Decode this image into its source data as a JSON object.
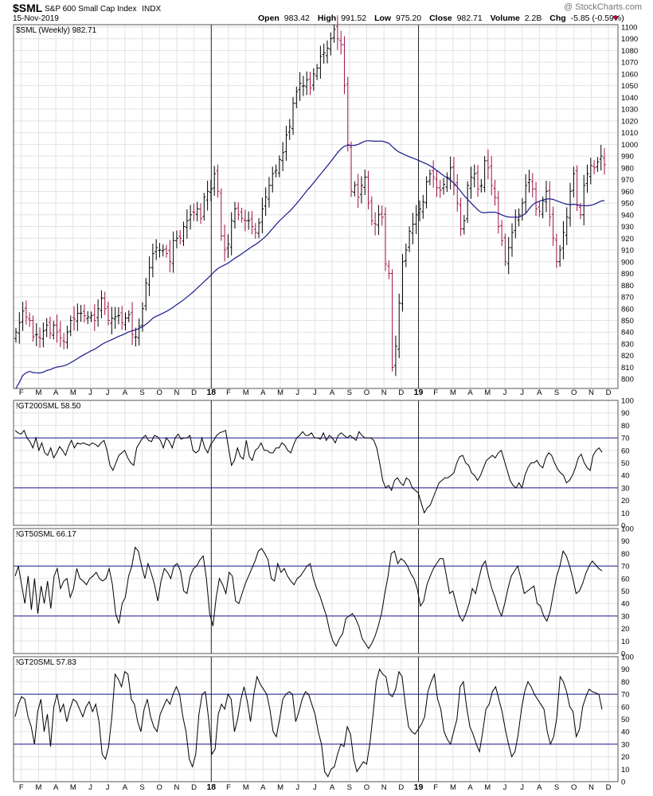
{
  "header": {
    "symbol": "$SML",
    "name": "S&P 600 Small Cap Index",
    "exchange": "INDX",
    "date": "15-Nov-2019",
    "watermark": "@ StockCharts.com",
    "open_label": "Open",
    "open": "983.42",
    "high_label": "High",
    "high": "991.52",
    "low_label": "Low",
    "low": "975.20",
    "close_label": "Close",
    "close": "982.71",
    "volume_label": "Volume",
    "volume": "2.2B",
    "chg_label": "Chg",
    "chg": "-5.85 (-0.59%)"
  },
  "colors": {
    "up": "#000000",
    "down": "#a0114a",
    "ma": "#1a1a8c",
    "ref_lines": "#1a1a8c",
    "indicator": "#000000",
    "grid": "#e2e2e2"
  },
  "x_labels": [
    "F",
    "M",
    "A",
    "M",
    "J",
    "J",
    "A",
    "S",
    "O",
    "N",
    "D",
    "18",
    "F",
    "M",
    "A",
    "M",
    "J",
    "J",
    "A",
    "S",
    "O",
    "N",
    "D",
    "19",
    "F",
    "M",
    "A",
    "M",
    "J",
    "J",
    "A",
    "S",
    "O",
    "N",
    "D"
  ],
  "chart_data": [
    {
      "type": "ohlc",
      "legend": "$SML (Weekly) 982.71",
      "ylim": [
        792,
        1102
      ],
      "y_ticks": [
        800,
        810,
        820,
        830,
        840,
        850,
        860,
        870,
        880,
        890,
        900,
        910,
        920,
        930,
        940,
        950,
        960,
        970,
        980,
        990,
        1000,
        1010,
        1020,
        1030,
        1040,
        1050,
        1060,
        1070,
        1080,
        1090,
        1100
      ],
      "x_labels": [
        "F",
        "M",
        "A",
        "M",
        "J",
        "J",
        "A",
        "S",
        "O",
        "N",
        "D",
        "18",
        "F",
        "M",
        "A",
        "M",
        "J",
        "J",
        "A",
        "S",
        "O",
        "N",
        "D",
        "19",
        "F",
        "M",
        "A",
        "M",
        "J",
        "J",
        "A",
        "S",
        "O",
        "N",
        "D"
      ],
      "close": [
        840,
        848,
        858,
        853,
        850,
        836,
        838,
        835,
        841,
        846,
        839,
        846,
        840,
        835,
        832,
        840,
        850,
        851,
        856,
        856,
        854,
        853,
        854,
        850,
        860,
        869,
        860,
        850,
        852,
        853,
        854,
        848,
        852,
        855,
        838,
        836,
        845,
        860,
        882,
        895,
        907,
        912,
        910,
        910,
        907,
        900,
        918,
        920,
        920,
        930,
        935,
        940,
        942,
        945,
        937,
        955,
        960,
        962,
        975,
        960,
        922,
        910,
        915,
        935,
        945,
        940,
        937,
        935,
        935,
        930,
        925,
        933,
        945,
        955,
        965,
        975,
        978,
        987,
        993,
        1008,
        1015,
        1035,
        1045,
        1052,
        1050,
        1055,
        1048,
        1060,
        1065,
        1075,
        1078,
        1082,
        1090,
        1098,
        1090,
        1085,
        1050,
        1000,
        960,
        965,
        955,
        965,
        972,
        950,
        935,
        932,
        940,
        938,
        898,
        890,
        810,
        828,
        865,
        900,
        910,
        926,
        932,
        940,
        945,
        951,
        968,
        975,
        972,
        963,
        961,
        966,
        972,
        980,
        965,
        950,
        928,
        935,
        965,
        972,
        975,
        962,
        965,
        986,
        980,
        965,
        955,
        930,
        918,
        900,
        912,
        925,
        938,
        940,
        950,
        965,
        970,
        962,
        945,
        943,
        952,
        960,
        938,
        920,
        900,
        910,
        925,
        938,
        960,
        975,
        948,
        940,
        965,
        975,
        982,
        980,
        985,
        990,
        982.71
      ],
      "ma": [
        null,
        null,
        null,
        null,
        null,
        null,
        null,
        null,
        null,
        null,
        null,
        null,
        null,
        null,
        null,
        null,
        null,
        null,
        null,
        null,
        null,
        null,
        null,
        null,
        null,
        null,
        null,
        null,
        null,
        null,
        null,
        null,
        null,
        null,
        null,
        null,
        null,
        null,
        null,
        null,
        null,
        null,
        null,
        null,
        null,
        null,
        null,
        null,
        null,
        null,
        null,
        null,
        null,
        null,
        null,
        null,
        null,
        null,
        null,
        null,
        null,
        null,
        null,
        null,
        null,
        null,
        null,
        null,
        null,
        null,
        null,
        null,
        null,
        null,
        null,
        null,
        null,
        null,
        null,
        null,
        null,
        null,
        null,
        null,
        null,
        null,
        null,
        null,
        null,
        null,
        null,
        null,
        null,
        null,
        null,
        null,
        null,
        null,
        null,
        null,
        null,
        null,
        null,
        null,
        null,
        null,
        null,
        null,
        null,
        null,
        null,
        null,
        null,
        null,
        null,
        null,
        null,
        null,
        null,
        null,
        null,
        null,
        null,
        null,
        null,
        null,
        null,
        null,
        null,
        null,
        null,
        null,
        null,
        null,
        null,
        null,
        null,
        null,
        null,
        null,
        null,
        null,
        null,
        null,
        null,
        null,
        null,
        null,
        null,
        null,
        null,
        null,
        null,
        null,
        null,
        null,
        null,
        null,
        null,
        null,
        null,
        null,
        null,
        null,
        null,
        null,
        null,
        null,
        null,
        null,
        null,
        null,
        null,
        null,
        null,
        null
      ]
    },
    {
      "type": "line",
      "legend": "!GT200SML 58.50",
      "ylim": [
        0,
        100
      ],
      "y_ticks": [
        0,
        10,
        20,
        30,
        40,
        50,
        60,
        70,
        80,
        90,
        100
      ],
      "ref_lines": [
        30,
        70
      ],
      "values": [
        76,
        74,
        73,
        76,
        70,
        67,
        62,
        70,
        60,
        66,
        58,
        56,
        62,
        54,
        58,
        63,
        60,
        56,
        63,
        68,
        62,
        66,
        65,
        66,
        65,
        64,
        66,
        65,
        63,
        66,
        68,
        60,
        48,
        44,
        50,
        56,
        58,
        60,
        54,
        50,
        48,
        62,
        66,
        70,
        72,
        68,
        67,
        72,
        71,
        68,
        62,
        70,
        67,
        62,
        70,
        73,
        69,
        70,
        70,
        72,
        60,
        58,
        60,
        70,
        62,
        58,
        65,
        68,
        72,
        74,
        75,
        76,
        62,
        48,
        52,
        62,
        55,
        53,
        68,
        55,
        52,
        60,
        62,
        66,
        60,
        60,
        58,
        58,
        62,
        62,
        66,
        64,
        60,
        58,
        65,
        70,
        72,
        75,
        72,
        72,
        74,
        70,
        70,
        69,
        74,
        68,
        72,
        70,
        66,
        72,
        74,
        72,
        70,
        72,
        70,
        68,
        75,
        72,
        70,
        70,
        70,
        68,
        62,
        50,
        36,
        30,
        32,
        28,
        36,
        38,
        34,
        32,
        38,
        36,
        30,
        28,
        26,
        18,
        10,
        14,
        16,
        22,
        28,
        34,
        36,
        38,
        38,
        40,
        42,
        50,
        55,
        56,
        50,
        48,
        42,
        40,
        36,
        40,
        46,
        52,
        54,
        56,
        54,
        58,
        60,
        52,
        44,
        36,
        32,
        30,
        34,
        30,
        40,
        46,
        50,
        50,
        52,
        48,
        46,
        54,
        58,
        56,
        50,
        45,
        42,
        40,
        34,
        36,
        40,
        46,
        54,
        57,
        50,
        46,
        44,
        56,
        60,
        62,
        58.5
      ]
    },
    {
      "type": "line",
      "legend": "!GT50SML 66.17",
      "ylim": [
        0,
        100
      ],
      "y_ticks": [
        0,
        10,
        20,
        30,
        40,
        50,
        60,
        70,
        80,
        90,
        100
      ],
      "ref_lines": [
        30,
        70
      ],
      "values": [
        62,
        70,
        55,
        40,
        62,
        35,
        60,
        32,
        54,
        40,
        58,
        36,
        62,
        68,
        52,
        58,
        60,
        45,
        52,
        68,
        60,
        58,
        55,
        60,
        62,
        65,
        60,
        58,
        60,
        68,
        55,
        32,
        24,
        40,
        45,
        62,
        70,
        85,
        82,
        70,
        60,
        72,
        64,
        55,
        42,
        58,
        68,
        65,
        60,
        70,
        72,
        66,
        50,
        48,
        62,
        68,
        70,
        75,
        78,
        60,
        32,
        22,
        45,
        60,
        55,
        48,
        65,
        62,
        42,
        40,
        48,
        56,
        62,
        68,
        74,
        82,
        84,
        80,
        75,
        60,
        58,
        72,
        65,
        68,
        62,
        58,
        55,
        60,
        62,
        66,
        70,
        72,
        60,
        52,
        46,
        38,
        30,
        18,
        10,
        6,
        12,
        16,
        28,
        30,
        32,
        28,
        22,
        12,
        8,
        4,
        8,
        14,
        22,
        32,
        48,
        62,
        80,
        82,
        72,
        76,
        74,
        70,
        64,
        60,
        52,
        38,
        42,
        55,
        62,
        68,
        72,
        76,
        76,
        62,
        48,
        50,
        40,
        30,
        26,
        32,
        40,
        52,
        48,
        60,
        70,
        74,
        62,
        52,
        45,
        36,
        30,
        40,
        52,
        62,
        66,
        70,
        60,
        48,
        50,
        52,
        54,
        40,
        38,
        30,
        26,
        34,
        48,
        62,
        70,
        82,
        78,
        70,
        60,
        48,
        50,
        56,
        64,
        70,
        74,
        71,
        68,
        66.17
      ]
    },
    {
      "type": "line",
      "legend": "!GT20SML 57.83",
      "ylim": [
        0,
        100
      ],
      "y_ticks": [
        0,
        10,
        20,
        30,
        40,
        50,
        60,
        70,
        80,
        90,
        100
      ],
      "ref_lines": [
        30,
        70
      ],
      "values": [
        52,
        62,
        68,
        66,
        52,
        44,
        30,
        56,
        66,
        40,
        54,
        28,
        60,
        70,
        56,
        62,
        48,
        58,
        66,
        64,
        58,
        52,
        60,
        64,
        56,
        62,
        48,
        22,
        18,
        28,
        52,
        86,
        82,
        76,
        88,
        86,
        66,
        62,
        48,
        40,
        58,
        66,
        52,
        44,
        40,
        54,
        60,
        66,
        62,
        70,
        76,
        70,
        52,
        40,
        18,
        12,
        22,
        54,
        70,
        72,
        50,
        22,
        26,
        54,
        62,
        58,
        70,
        66,
        40,
        50,
        66,
        76,
        64,
        48,
        70,
        84,
        78,
        74,
        70,
        58,
        40,
        36,
        50,
        66,
        70,
        72,
        70,
        48,
        56,
        66,
        72,
        70,
        62,
        54,
        40,
        30,
        8,
        4,
        10,
        12,
        22,
        30,
        28,
        44,
        38,
        18,
        8,
        12,
        16,
        14,
        30,
        54,
        80,
        90,
        86,
        84,
        70,
        68,
        74,
        88,
        84,
        62,
        44,
        40,
        38,
        42,
        46,
        52,
        72,
        80,
        86,
        66,
        58,
        40,
        34,
        30,
        40,
        50,
        76,
        80,
        60,
        44,
        38,
        30,
        24,
        40,
        58,
        62,
        72,
        76,
        66,
        56,
        42,
        30,
        20,
        24,
        38,
        58,
        72,
        80,
        76,
        70,
        66,
        62,
        58,
        40,
        30,
        36,
        52,
        84,
        80,
        72,
        60,
        56,
        36,
        42,
        60,
        68,
        74,
        72,
        71,
        70,
        57.83
      ]
    }
  ]
}
